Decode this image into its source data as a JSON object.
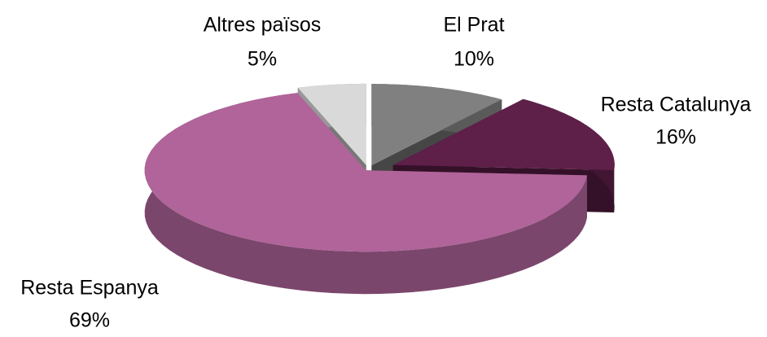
{
  "chart_data": {
    "type": "pie3d",
    "categories": [
      "El Prat",
      "Resta Catalunya",
      "Resta Espanya",
      "Altres països"
    ],
    "values": [
      10,
      16,
      69,
      5
    ],
    "value_labels": [
      "10%",
      "16%",
      "69%",
      "5%"
    ],
    "colors": [
      "#808080",
      "#5e1f48",
      "#b0649a",
      "#d9d9d9"
    ]
  }
}
